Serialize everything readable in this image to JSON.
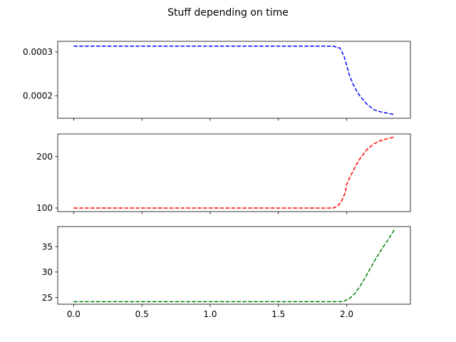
{
  "chart_data": {
    "type": "line",
    "title": "Stuff depending on time",
    "shared_x": {
      "xlim": [
        -0.117,
        2.467
      ],
      "ticks": [
        0.0,
        0.5,
        1.0,
        1.5,
        2.0
      ],
      "tick_labels": [
        "0.0",
        "0.5",
        "1.0",
        "1.5",
        "2.0"
      ]
    },
    "subplots": [
      {
        "ylim": [
          0.0001485,
          0.000324
        ],
        "yticks": [
          0.0002,
          0.0003
        ],
        "ytick_labels": [
          "0.0002",
          "0.0003"
        ],
        "series": [
          {
            "color": "#0000ff",
            "style": "dashed",
            "x": [
              0.0,
              0.5,
              1.0,
              1.5,
              1.9,
              1.95,
              1.98,
              2.0,
              2.02,
              2.05,
              2.08,
              2.1,
              2.15,
              2.2,
              2.25,
              2.3,
              2.35
            ],
            "y": [
              0.000313,
              0.000313,
              0.000313,
              0.000313,
              0.000313,
              0.000309,
              0.000291,
              0.000269,
              0.000247,
              0.000224,
              0.000207,
              0.000198,
              0.00018,
              0.000168,
              0.000163,
              0.00016,
              0.000157
            ]
          }
        ]
      },
      {
        "ylim": [
          93,
          244
        ],
        "yticks": [
          100,
          200
        ],
        "ytick_labels": [
          "100",
          "200"
        ],
        "series": [
          {
            "color": "#ff0000",
            "style": "dashed",
            "x": [
              0.0,
              0.5,
              1.0,
              1.5,
              1.9,
              1.93,
              1.96,
              1.99,
              2.0,
              2.03,
              2.07,
              2.1,
              2.15,
              2.2,
              2.25,
              2.3,
              2.35
            ],
            "y": [
              100,
              100,
              100,
              100,
              100,
              103,
              112,
              130,
              146,
              163,
              184,
              197,
              214,
              225,
              231,
              235,
              238
            ]
          }
        ]
      },
      {
        "ylim": [
          23.7,
          38.9
        ],
        "yticks": [
          25,
          30,
          35
        ],
        "ytick_labels": [
          "25",
          "30",
          "35"
        ],
        "series": [
          {
            "color": "#008000",
            "style": "dashed",
            "x": [
              0.0,
              0.5,
              1.0,
              1.5,
              1.95,
              1.98,
              2.02,
              2.06,
              2.1,
              2.15,
              2.2,
              2.25,
              2.3,
              2.35
            ],
            "y": [
              24.2,
              24.2,
              24.2,
              24.2,
              24.2,
              24.3,
              24.8,
              25.8,
              27.3,
              29.6,
              32.0,
              34.2,
              36.2,
              38.3
            ]
          }
        ]
      }
    ]
  }
}
